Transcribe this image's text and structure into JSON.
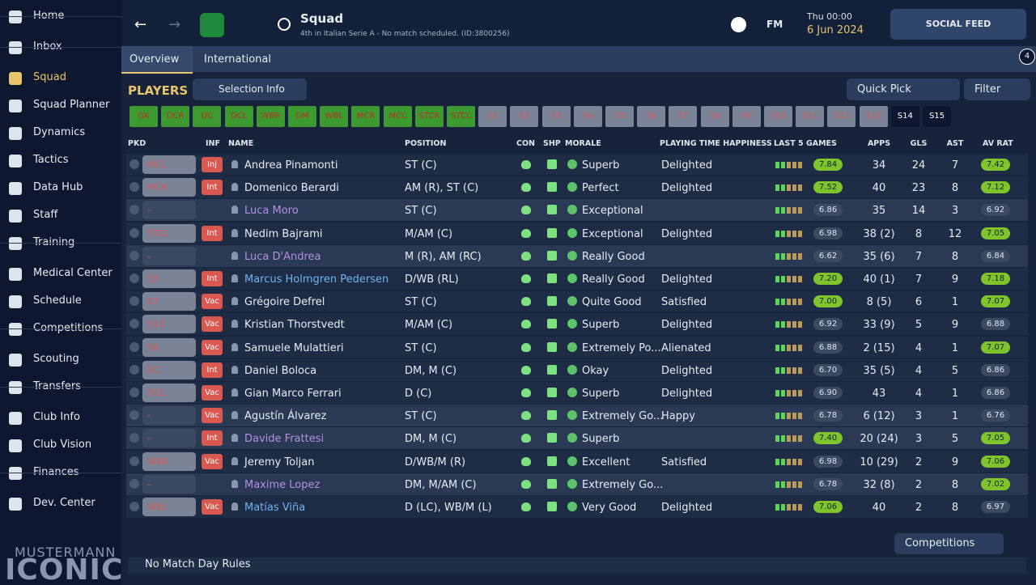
{
  "sidebar": {
    "groups": [
      [
        "Home"
      ],
      [
        "Inbox"
      ],
      [
        "Squad",
        "Squad Planner",
        "Dynamics",
        "Tactics",
        "Data Hub",
        "Staff",
        "Training"
      ],
      [
        "Medical Center",
        "Schedule",
        "Competitions"
      ],
      [
        "Scouting",
        "Transfers"
      ],
      [
        "Club Info",
        "Club Vision",
        "Finances"
      ],
      [
        "Dev. Center"
      ]
    ],
    "active": "Squad",
    "logo_top": "MUSTERMANN",
    "logo_bottom": "ICONIC"
  },
  "header": {
    "title": "Squad",
    "subtitle": "4th in Italian Serie A - No match scheduled. (ID:3800256)",
    "fm": "FM",
    "day": "Thu 00:00",
    "date": "6 Jun 2024",
    "social": "SOCIAL FEED",
    "notifications": "4"
  },
  "tabs": [
    "Overview",
    "International"
  ],
  "toolbar": {
    "title": "PLAYERS",
    "selection": "Selection Info",
    "quick_pick": "Quick Pick",
    "filter": "Filter"
  },
  "chips": {
    "assigned": [
      "GK",
      "DCR",
      "DC",
      "DCL",
      "WBR",
      "DM",
      "WBL",
      "MCR",
      "MCL",
      "STCR",
      "STCL"
    ],
    "unassigned": [
      "S1",
      "S2",
      "S3",
      "S4",
      "S5",
      "S6",
      "S7",
      "S8",
      "S9",
      "S10",
      "S11",
      "S12",
      "S13"
    ],
    "other": [
      "S14",
      "S15"
    ]
  },
  "table": {
    "columns": [
      "PKD",
      "INF",
      "NAME",
      "POSITION",
      "CON",
      "SHP",
      "MORALE",
      "PLAYING TIME HAPPINESS",
      "LAST 5 GAMES",
      "APPS",
      "GLS",
      "AST",
      "AV RAT"
    ],
    "rows": [
      {
        "pkd": "MCL",
        "inf": "Inj",
        "name": "Andrea Pinamonti",
        "position": "ST (C)",
        "morale": "Superb",
        "happiness": "Delighted",
        "last5": "7.84",
        "apps": "34",
        "gls": "24",
        "ast": "7",
        "avrat": "7.42"
      },
      {
        "pkd": "MCR",
        "inf": "Int",
        "name": "Domenico Berardi",
        "position": "AM (R), ST (C)",
        "morale": "Perfect",
        "happiness": "Delighted",
        "last5": "7.52",
        "apps": "40",
        "gls": "23",
        "ast": "8",
        "avrat": "7.12"
      },
      {
        "pkd": "-",
        "name": "Luca Moro",
        "name_color": "#b58ee0",
        "position": "ST (C)",
        "morale": "Exceptional",
        "last5": "6.86",
        "apps": "35",
        "gls": "14",
        "ast": "3",
        "avrat": "6.92"
      },
      {
        "pkd": "STCL",
        "inf": "Int",
        "name": "Nedim Bajrami",
        "position": "M/AM (C)",
        "morale": "Exceptional",
        "happiness": "Delighted",
        "last5": "6.98",
        "apps": "38 (2)",
        "gls": "8",
        "ast": "12",
        "avrat": "7.05"
      },
      {
        "pkd": "-",
        "name": "Luca D'Andrea",
        "name_color": "#b58ee0",
        "position": "M (R), AM (RC)",
        "morale": "Really Good",
        "last5": "6.62",
        "apps": "35 (6)",
        "gls": "7",
        "ast": "8",
        "avrat": "6.84"
      },
      {
        "pkd": "S5",
        "inf": "Int",
        "name": "Marcus Holmgren Pedersen",
        "name_color": "#6fb3f0",
        "position": "D/WB (RL)",
        "morale": "Really Good",
        "happiness": "Delighted",
        "last5": "7.20",
        "apps": "40 (1)",
        "gls": "7",
        "ast": "9",
        "avrat": "7.18"
      },
      {
        "pkd": "S7",
        "inf": "Vac",
        "name": "Grégoire Defrel",
        "position": "ST (C)",
        "morale": "Quite Good",
        "happiness": "Satisfied",
        "last5": "7.00",
        "apps": "8 (5)",
        "gls": "6",
        "ast": "1",
        "avrat": "7.07"
      },
      {
        "pkd": "S13",
        "inf": "Vac",
        "name": "Kristian Thorstvedt",
        "position": "M/AM (C)",
        "morale": "Superb",
        "happiness": "Delighted",
        "last5": "6.92",
        "apps": "33 (9)",
        "gls": "5",
        "ast": "9",
        "avrat": "6.88"
      },
      {
        "pkd": "S6",
        "inf": "Vac",
        "name": "Samuele Mulattieri",
        "position": "ST (C)",
        "morale": "Extremely Po...",
        "happiness": "Alienated",
        "last5": "6.88",
        "apps": "2 (15)",
        "gls": "4",
        "ast": "1",
        "avrat": "7.07"
      },
      {
        "pkd": "DC",
        "inf": "Int",
        "name": "Daniel Boloca",
        "position": "DM, M (C)",
        "morale": "Okay",
        "happiness": "Delighted",
        "last5": "6.70",
        "apps": "35 (5)",
        "gls": "4",
        "ast": "5",
        "avrat": "6.86"
      },
      {
        "pkd": "DCL",
        "inf": "Vac",
        "name": "Gian Marco Ferrari",
        "position": "D (C)",
        "morale": "Superb",
        "happiness": "Delighted",
        "last5": "6.90",
        "apps": "43",
        "gls": "4",
        "ast": "1",
        "avrat": "6.86"
      },
      {
        "pkd": "-",
        "inf": "Vac",
        "name": "Agustín Álvarez",
        "position": "ST (C)",
        "morale": "Extremely Go...",
        "happiness": "Happy",
        "last5": "6.78",
        "apps": "6 (12)",
        "gls": "3",
        "ast": "1",
        "avrat": "6.76"
      },
      {
        "pkd": "-",
        "inf": "Int",
        "name": "Davide Frattesi",
        "name_color": "#b58ee0",
        "position": "DM, M (C)",
        "morale": "Superb",
        "last5": "7.40",
        "apps": "20 (24)",
        "gls": "3",
        "ast": "5",
        "avrat": "7.05"
      },
      {
        "pkd": "WBR",
        "inf": "Vac",
        "name": "Jeremy Toljan",
        "position": "D/WB/M (R)",
        "morale": "Excellent",
        "happiness": "Satisfied",
        "last5": "6.98",
        "apps": "10 (29)",
        "gls": "2",
        "ast": "9",
        "avrat": "7.06"
      },
      {
        "pkd": "-",
        "name": "Maxime Lopez",
        "name_color": "#b58ee0",
        "position": "DM, M/AM (C)",
        "morale": "Extremely Go...",
        "last5": "6.78",
        "apps": "32 (8)",
        "gls": "2",
        "ast": "8",
        "avrat": "7.02"
      },
      {
        "pkd": "WBL",
        "inf": "Vac",
        "name": "Matías Viña",
        "name_color": "#6fb3f0",
        "position": "D (LC), WB/M (L)",
        "morale": "Very Good",
        "happiness": "Delighted",
        "last5": "7.06",
        "apps": "40",
        "gls": "2",
        "ast": "8",
        "avrat": "6.97"
      }
    ]
  },
  "footer": {
    "competitions": "Competitions",
    "rules": "No Match Day Rules"
  }
}
